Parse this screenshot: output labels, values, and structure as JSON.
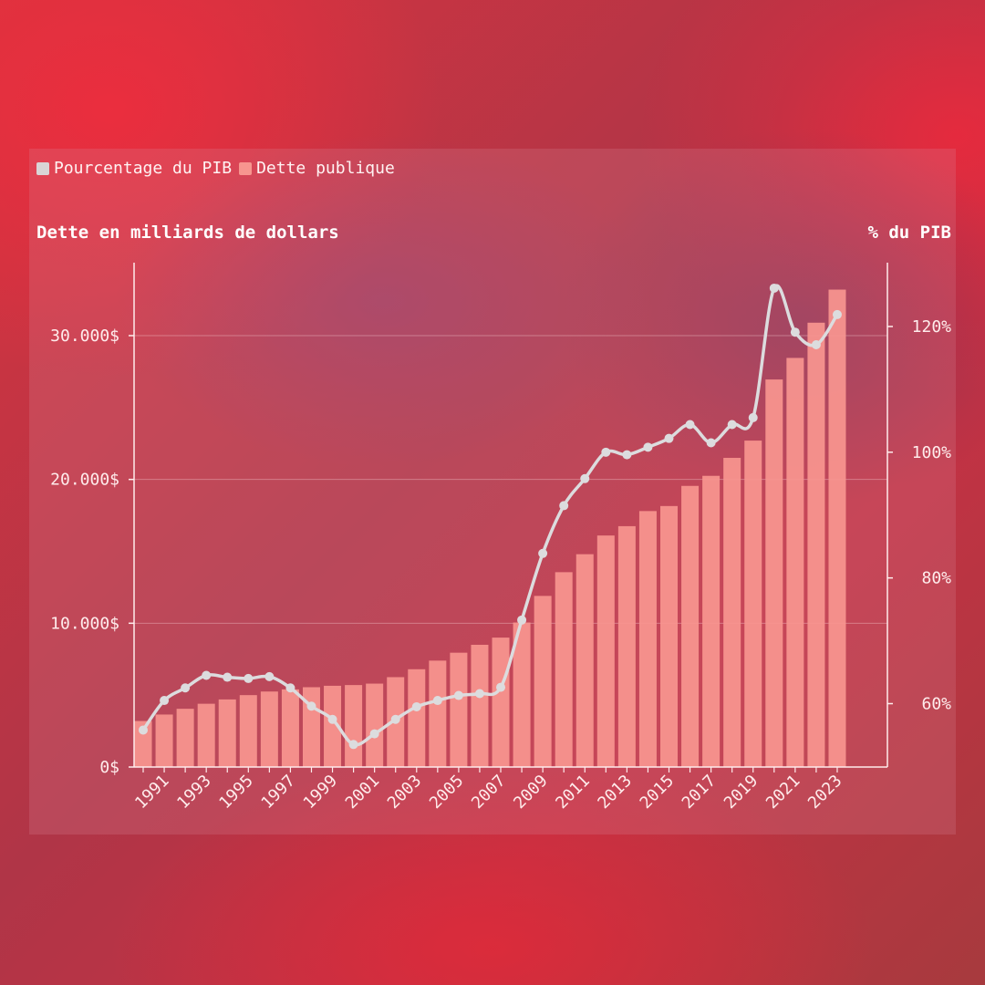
{
  "legend": {
    "items": [
      {
        "label": "Pourcentage du PIB",
        "color": "#d9d5d6"
      },
      {
        "label": "Dette publique",
        "color": "#f7958f"
      }
    ]
  },
  "chart_data": {
    "type": "bar",
    "y_left_title": "Dette en milliards de dollars",
    "y_right_title": "% du PIB",
    "years": [
      1990,
      1991,
      1992,
      1993,
      1994,
      1995,
      1996,
      1997,
      1998,
      1999,
      2000,
      2001,
      2002,
      2003,
      2004,
      2005,
      2006,
      2007,
      2008,
      2009,
      2010,
      2011,
      2012,
      2013,
      2014,
      2015,
      2016,
      2017,
      2018,
      2019,
      2020,
      2021,
      2022,
      2023
    ],
    "x_tick_labels": [
      "1991",
      "1993",
      "1995",
      "1997",
      "1999",
      "2001",
      "2003",
      "2005",
      "2007",
      "2009",
      "2011",
      "2013",
      "2015",
      "2017",
      "2019",
      "2021",
      "2023"
    ],
    "series": [
      {
        "name": "Dette publique",
        "axis": "left",
        "type": "bar",
        "values": [
          3200,
          3650,
          4050,
          4400,
          4700,
          5000,
          5250,
          5400,
          5550,
          5650,
          5700,
          5800,
          6250,
          6800,
          7400,
          7950,
          8500,
          9000,
          10050,
          11900,
          13550,
          14800,
          16100,
          16750,
          17800,
          18150,
          19550,
          20250,
          21500,
          22700,
          26950,
          28450,
          30900,
          33200
        ]
      },
      {
        "name": "Pourcentage du PIB",
        "axis": "right",
        "type": "line",
        "values": [
          55.8,
          60.5,
          62.5,
          64.5,
          64.2,
          64.0,
          64.3,
          62.5,
          59.6,
          57.5,
          53.5,
          55.2,
          57.5,
          59.5,
          60.5,
          61.3,
          61.6,
          62.6,
          73.3,
          83.9,
          91.5,
          95.8,
          100.0,
          99.6,
          100.8,
          102.2,
          104.4,
          101.5,
          104.4,
          105.5,
          126.1,
          119.1,
          117.1,
          121.9
        ]
      }
    ],
    "y_left": {
      "min": 0,
      "max": 33000,
      "ticks": [
        0,
        10000,
        20000,
        30000
      ],
      "tick_labels": [
        "0$",
        "10.000$",
        "20.000$",
        "30.000$"
      ]
    },
    "y_right": {
      "min": 50,
      "max": 130,
      "ticks": [
        60,
        80,
        100,
        120
      ],
      "tick_labels": [
        "60%",
        "80%",
        "100%",
        "120%"
      ]
    },
    "grid": true,
    "legend_position": "top-left"
  }
}
